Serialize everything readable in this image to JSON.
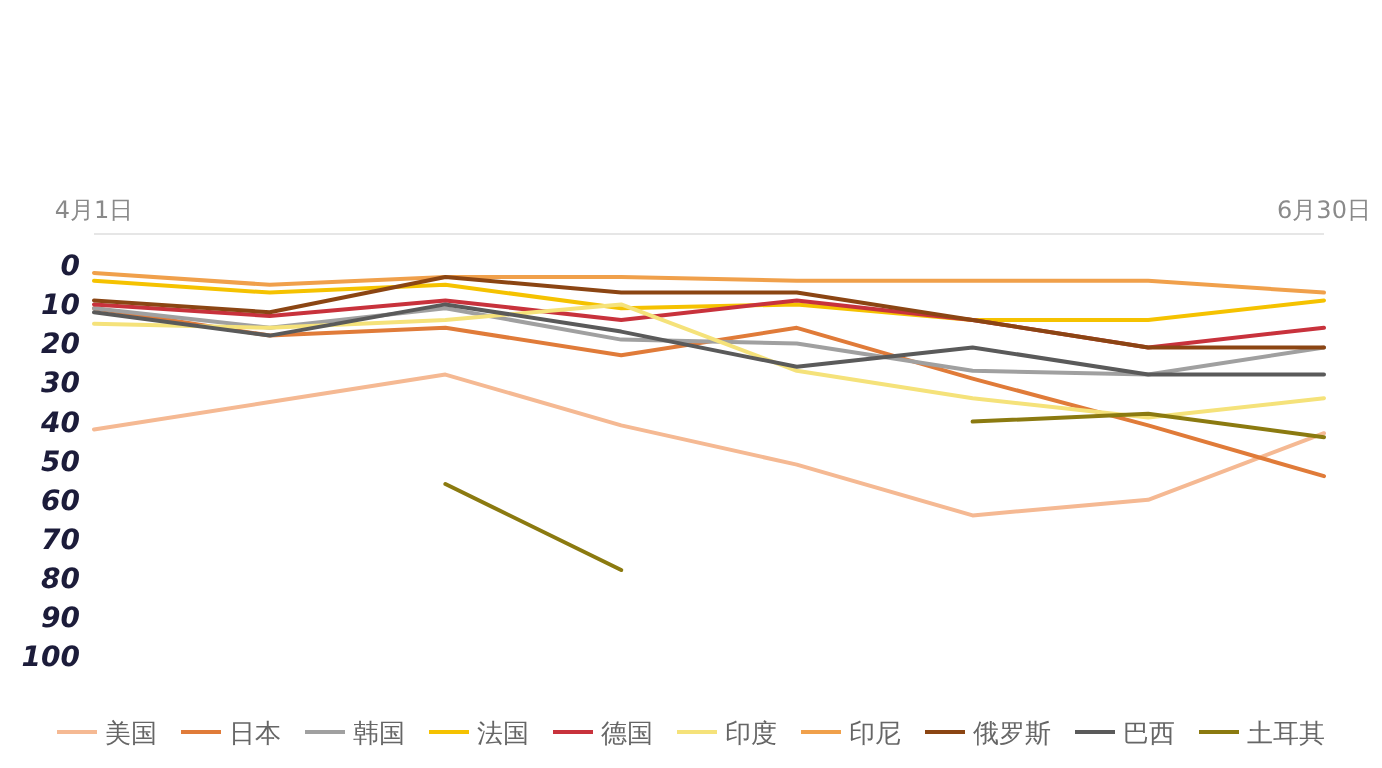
{
  "chart_data": {
    "type": "line",
    "categories": [
      "4月1日",
      null,
      null,
      null,
      null,
      null,
      null,
      "6月30日"
    ],
    "ylim": [
      100,
      -8
    ],
    "yticks": [
      0,
      10,
      20,
      30,
      40,
      50,
      60,
      70,
      80,
      90,
      100
    ],
    "grid": false,
    "legend": "bottom",
    "marker": "none",
    "line_style": "solid",
    "series": [
      {
        "name": "美国",
        "color": "#f5b993",
        "values": [
          42,
          35,
          28,
          41,
          51,
          64,
          60,
          43
        ]
      },
      {
        "name": "日本",
        "color": "#e07b39",
        "values": [
          11,
          18,
          16,
          23,
          16,
          29,
          41,
          54
        ]
      },
      {
        "name": "韩国",
        "color": "#a0a0a0",
        "values": [
          11,
          16,
          11,
          19,
          20,
          27,
          28,
          21
        ]
      },
      {
        "name": "法国",
        "color": "#f5c200",
        "values": [
          4,
          7,
          5,
          11,
          10,
          14,
          14,
          9
        ]
      },
      {
        "name": "德国",
        "color": "#c8323c",
        "values": [
          10,
          13,
          9,
          14,
          9,
          14,
          21,
          16
        ]
      },
      {
        "name": "印度",
        "color": "#f5e27a",
        "values": [
          15,
          16,
          14,
          10,
          27,
          34,
          39,
          34
        ]
      },
      {
        "name": "印尼",
        "color": "#f0a04b",
        "values": [
          2,
          5,
          3,
          3,
          4,
          4,
          4,
          7
        ]
      },
      {
        "name": "俄罗斯",
        "color": "#8b4513",
        "values": [
          9,
          12,
          3,
          7,
          7,
          14,
          21,
          21
        ]
      },
      {
        "name": "巴西",
        "color": "#5a5a5a",
        "values": [
          12,
          18,
          10,
          17,
          26,
          21,
          28,
          28
        ]
      },
      {
        "name": "土耳其",
        "color": "#8b7a10",
        "values": [
          null,
          null,
          56,
          78,
          null,
          40,
          38,
          44
        ]
      }
    ]
  }
}
